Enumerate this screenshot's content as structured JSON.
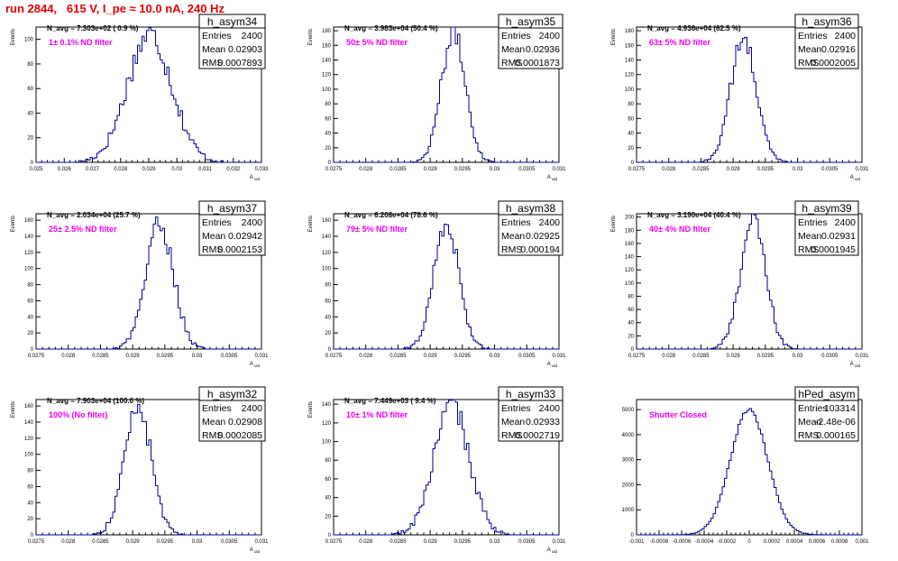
{
  "page": {
    "title": "run 2844,   615 V, I_pe ≈ 10.0 nA, 240 Hz"
  },
  "chart_data": [
    {
      "type": "bar",
      "name": "h_asym34",
      "ylabel": "Events",
      "xlabel": "A_uid",
      "xlim": [
        0.025,
        0.033
      ],
      "ylim": [
        0,
        110
      ],
      "xticks": [
        "0.025",
        "0.026",
        "0.027",
        "0.028",
        "0.029",
        "0.03",
        "0.031",
        "0.032",
        "0.033"
      ],
      "yticks": [
        "0",
        "20",
        "40",
        "60",
        "80",
        "100"
      ],
      "stats": {
        "entries": "2400",
        "mean": "0.02903",
        "rms": "0.0007893"
      },
      "navg": "N_avg = 7.303e+02 ( 0.9 %)",
      "annotation": "1± 0.1% ND filter",
      "hist": {
        "mean": 0.02903,
        "rms": 0.0007893,
        "peak": 104,
        "bins": 100,
        "range": [
          0.025,
          0.033
        ]
      }
    },
    {
      "type": "bar",
      "name": "h_asym35",
      "ylabel": "Events",
      "xlabel": "A_uid",
      "xlim": [
        0.0275,
        0.031
      ],
      "ylim": [
        0,
        185
      ],
      "xticks": [
        "0.0275",
        "0.028",
        "0.0285",
        "0.029",
        "0.0295",
        "0.03",
        "0.0305",
        "0.031"
      ],
      "yticks": [
        "0",
        "20",
        "40",
        "60",
        "80",
        "100",
        "120",
        "140",
        "160",
        "180"
      ],
      "stats": {
        "entries": "2400",
        "mean": "0.02936",
        "rms": "0.0001873"
      },
      "navg": "N_avg = 3.983e+04 (50.4 %)",
      "annotation": "50± 5% ND filter",
      "hist": {
        "mean": 0.02936,
        "rms": 0.0001873,
        "peak": 178,
        "bins": 100,
        "range": [
          0.0275,
          0.031
        ]
      }
    },
    {
      "type": "bar",
      "name": "h_asym36",
      "ylabel": "Events",
      "xlabel": "A_uid",
      "xlim": [
        0.0275,
        0.031
      ],
      "ylim": [
        0,
        185
      ],
      "xticks": [
        "0.0275",
        "0.028",
        "0.0285",
        "0.029",
        "0.0295",
        "0.03",
        "0.0305",
        "0.031"
      ],
      "yticks": [
        "0",
        "20",
        "40",
        "60",
        "80",
        "100",
        "120",
        "140",
        "160",
        "180"
      ],
      "stats": {
        "entries": "2400",
        "mean": "0.02916",
        "rms": "0.0002005"
      },
      "navg": "N_avg = 4.936e+04 (62.5 %)",
      "annotation": "63± 5% ND filter",
      "hist": {
        "mean": 0.02916,
        "rms": 0.0002005,
        "peak": 168,
        "bins": 100,
        "range": [
          0.0275,
          0.031
        ]
      }
    },
    {
      "type": "bar",
      "name": "h_asym37",
      "ylabel": "Events",
      "xlabel": "A_uid",
      "xlim": [
        0.0275,
        0.031
      ],
      "ylim": [
        0,
        168
      ],
      "xticks": [
        "0.0275",
        "0.028",
        "0.0285",
        "0.029",
        "0.0295",
        "0.03",
        "0.0305",
        "0.031"
      ],
      "yticks": [
        "0",
        "20",
        "40",
        "60",
        "80",
        "100",
        "120",
        "140",
        "160"
      ],
      "stats": {
        "entries": "2400",
        "mean": "0.02942",
        "rms": "0.0002153"
      },
      "navg": "N_avg = 2.034e+04 (25.7 %)",
      "annotation": "25± 2.5% ND filter",
      "hist": {
        "mean": 0.02942,
        "rms": 0.0002153,
        "peak": 155,
        "bins": 100,
        "range": [
          0.0275,
          0.031
        ]
      }
    },
    {
      "type": "bar",
      "name": "h_asym38",
      "ylabel": "Events",
      "xlabel": "A_uid",
      "xlim": [
        0.0275,
        0.031
      ],
      "ylim": [
        0,
        168
      ],
      "xticks": [
        "0.0275",
        "0.028",
        "0.0285",
        "0.029",
        "0.0295",
        "0.03",
        "0.0305",
        "0.031"
      ],
      "yticks": [
        "0",
        "20",
        "40",
        "60",
        "80",
        "100",
        "120",
        "140",
        "160"
      ],
      "stats": {
        "entries": "2400",
        "mean": "0.02925",
        "rms": "0.000194"
      },
      "navg": "N_avg = 6.208e+04 (78.6 %)",
      "annotation": "79± 5% ND filter",
      "hist": {
        "mean": 0.02925,
        "rms": 0.000194,
        "peak": 158,
        "bins": 100,
        "range": [
          0.0275,
          0.031
        ]
      }
    },
    {
      "type": "bar",
      "name": "h_asym39",
      "ylabel": "Events",
      "xlabel": "A_uid",
      "xlim": [
        0.0275,
        0.031
      ],
      "ylim": [
        0,
        205
      ],
      "xticks": [
        "0.0275",
        "0.028",
        "0.0285",
        "0.029",
        "0.0295",
        "0.03",
        "0.0305",
        "0.031"
      ],
      "yticks": [
        "0",
        "20",
        "40",
        "60",
        "80",
        "100",
        "120",
        "140",
        "160",
        "180",
        "200"
      ],
      "stats": {
        "entries": "2400",
        "mean": "0.02931",
        "rms": "0.0001945"
      },
      "navg": "N_avg = 3.190e+04 (40.4 %)",
      "annotation": "40± 4% ND filter",
      "hist": {
        "mean": 0.02931,
        "rms": 0.0001945,
        "peak": 196,
        "bins": 100,
        "range": [
          0.0275,
          0.031
        ]
      }
    },
    {
      "type": "bar",
      "name": "h_asym32",
      "ylabel": "Events",
      "xlabel": "A_uid",
      "xlim": [
        0.0275,
        0.031
      ],
      "ylim": [
        0,
        168
      ],
      "xticks": [
        "0.0275",
        "0.028",
        "0.0285",
        "0.029",
        "0.0295",
        "0.03",
        "0.0305",
        "0.031"
      ],
      "yticks": [
        "0",
        "20",
        "40",
        "60",
        "80",
        "100",
        "120",
        "140",
        "160"
      ],
      "stats": {
        "entries": "2400",
        "mean": "0.02908",
        "rms": "0.0002085"
      },
      "navg": "N_avg = 7.903e+04 (100.0 %)",
      "annotation": "100% (No filter)",
      "hist": {
        "mean": 0.02908,
        "rms": 0.0002085,
        "peak": 160,
        "bins": 100,
        "range": [
          0.0275,
          0.031
        ]
      }
    },
    {
      "type": "bar",
      "name": "h_asym33",
      "ylabel": "Events",
      "xlabel": "A_uid",
      "xlim": [
        0.0275,
        0.031
      ],
      "ylim": [
        0,
        145
      ],
      "xticks": [
        "0.0275",
        "0.028",
        "0.0285",
        "0.029",
        "0.0295",
        "0.03",
        "0.0305",
        "0.031"
      ],
      "yticks": [
        "0",
        "20",
        "40",
        "60",
        "80",
        "100",
        "120",
        "140"
      ],
      "stats": {
        "entries": "2400",
        "mean": "0.02933",
        "rms": "0.0002719"
      },
      "navg": "N_avg = 7.449e+03 ( 9.4 %)",
      "annotation": "10± 1% ND filter",
      "hist": {
        "mean": 0.02933,
        "rms": 0.0002719,
        "peak": 140,
        "bins": 100,
        "range": [
          0.0275,
          0.031
        ]
      }
    },
    {
      "type": "bar",
      "name": "hPed_asym",
      "ylabel": "",
      "xlabel": "",
      "xlim": [
        -0.001,
        0.001
      ],
      "ylim": [
        0,
        5400
      ],
      "xticks": [
        "-0.001",
        "-0.0008",
        "-0.0006",
        "-0.0004",
        "-0.0002",
        "0",
        "0.0002",
        "0.0004",
        "0.0006",
        "0.0008",
        "0.001"
      ],
      "yticks": [
        "0",
        "1000",
        "2000",
        "3000",
        "4000",
        "5000"
      ],
      "stats": {
        "entries": "103314",
        "mean": "-2.48e-06",
        "rms": "0.000165"
      },
      "navg": "",
      "annotation": "Shutter Closed",
      "hist": {
        "mean": -2.48e-06,
        "rms": 0.000165,
        "peak": 5000,
        "bins": 100,
        "range": [
          -0.001,
          0.001
        ]
      }
    }
  ],
  "labels": {
    "entries": "Entries",
    "mean": "Mean",
    "rms": "RMS"
  },
  "colors": {
    "title": "#e00000",
    "histogram": "#000099",
    "annotation": "#ee00ee"
  }
}
